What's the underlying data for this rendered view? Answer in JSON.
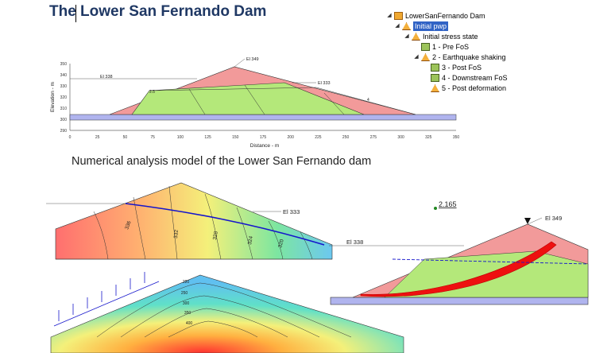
{
  "title": {
    "text_a": "The",
    "text_b": " Lower San Fernando Dam"
  },
  "caption": "Numerical analysis model of the Lower San Fernando dam",
  "tree": {
    "root": "LowerSanFernando Dam",
    "items": [
      {
        "label": "Initial pwp",
        "selected": true
      },
      {
        "label": "Initial stress state"
      },
      {
        "label": "1 - Pre FoS"
      },
      {
        "label": "2 - Earthquake shaking"
      },
      {
        "label": "3 - Post FoS"
      },
      {
        "label": "4 - Downstream FoS"
      },
      {
        "label": "5 - Post deformation"
      }
    ]
  },
  "section": {
    "ylabel": "Elevation - m",
    "xlabel": "Distance - m",
    "yticks": [
      "350",
      "340",
      "330",
      "320",
      "310",
      "300",
      "290"
    ],
    "xticks": [
      "0",
      "25",
      "50",
      "75",
      "100",
      "125",
      "150",
      "175",
      "200",
      "225",
      "250",
      "275",
      "300",
      "325",
      "350"
    ],
    "labels": {
      "el349": "El 349",
      "el338": "El 338",
      "el333": "El 333",
      "slope_left": "2.5",
      "slope_right": "4"
    }
  },
  "contour_pwp": {
    "el333": "El 333",
    "values": [
      "336",
      "332",
      "328",
      "324",
      "320"
    ]
  },
  "stress": {
    "values": [
      "220",
      "250",
      "300",
      "350",
      "400"
    ]
  },
  "fos": {
    "value": "2.165",
    "el349": "El 349",
    "el338": "El 338"
  },
  "colors": {
    "title": "#1f3864",
    "shell": "#f29a9a",
    "core": "#b4e87a",
    "foundation": "#b0b4ee",
    "selection": "#3163c5"
  }
}
